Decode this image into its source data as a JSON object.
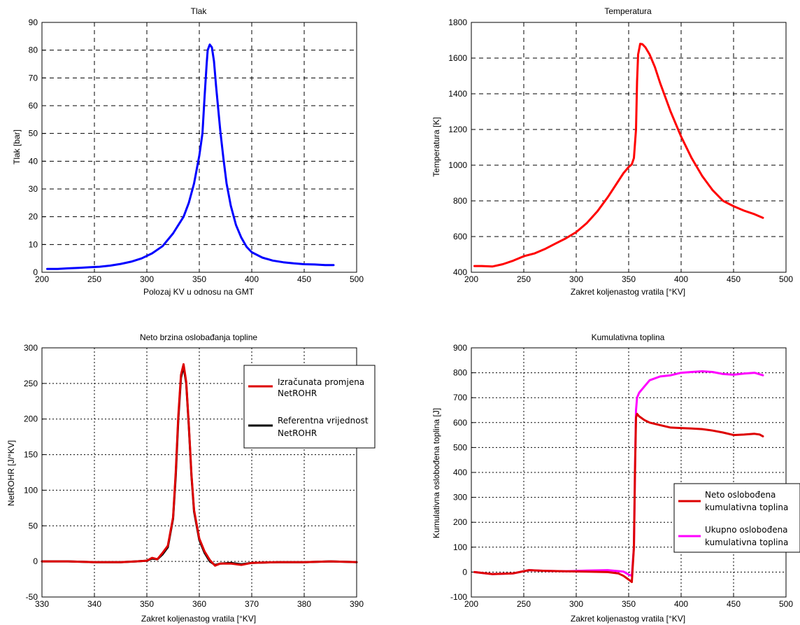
{
  "chart_data": [
    {
      "type": "line",
      "title": "Tlak",
      "xlabel": "Polozaj KV u odnosu na GMT",
      "ylabel": "Tlak [bar]",
      "xlim": [
        200,
        500
      ],
      "ylim": [
        0,
        90
      ],
      "xticks": [
        200,
        250,
        300,
        350,
        400,
        450,
        500
      ],
      "yticks": [
        0,
        10,
        20,
        30,
        40,
        50,
        60,
        70,
        80,
        90
      ],
      "grid": "dashed",
      "series": [
        {
          "color": "#0000ff",
          "x": [
            205,
            215,
            225,
            235,
            245,
            255,
            265,
            275,
            285,
            295,
            305,
            315,
            325,
            335,
            340,
            345,
            350,
            353,
            355,
            357,
            358,
            360,
            362,
            364,
            366,
            368,
            370,
            373,
            376,
            380,
            385,
            390,
            395,
            400,
            410,
            420,
            430,
            440,
            450,
            460,
            470,
            478
          ],
          "y": [
            1.2,
            1.2,
            1.4,
            1.6,
            1.8,
            2.0,
            2.4,
            3.0,
            3.8,
            5.0,
            6.8,
            9.4,
            14,
            20,
            25,
            32,
            42,
            50,
            63,
            75,
            80,
            82,
            81,
            76,
            67,
            59,
            51,
            41,
            32,
            24,
            17,
            12.5,
            9.2,
            7.2,
            5.3,
            4.2,
            3.6,
            3.2,
            2.9,
            2.8,
            2.6,
            2.6
          ]
        }
      ]
    },
    {
      "type": "line",
      "title": "Temperatura",
      "xlabel": "Zakret koljenastog vratila [°KV]",
      "ylabel": "Temperatura [K]",
      "xlim": [
        200,
        500
      ],
      "ylim": [
        400,
        1800
      ],
      "xticks": [
        200,
        250,
        300,
        350,
        400,
        450,
        500
      ],
      "yticks": [
        400,
        600,
        800,
        1000,
        1200,
        1400,
        1600,
        1800
      ],
      "grid": "dashed",
      "series": [
        {
          "color": "#ff0000",
          "x": [
            203,
            210,
            220,
            230,
            240,
            250,
            260,
            270,
            280,
            290,
            300,
            310,
            320,
            330,
            340,
            345,
            350,
            353,
            355,
            357,
            358,
            359,
            361,
            363,
            366,
            370,
            375,
            380,
            390,
            400,
            410,
            420,
            430,
            440,
            450,
            460,
            470,
            478
          ],
          "y": [
            435,
            435,
            432,
            445,
            465,
            490,
            505,
            530,
            560,
            590,
            625,
            675,
            740,
            820,
            910,
            955,
            990,
            1005,
            1040,
            1200,
            1470,
            1620,
            1680,
            1678,
            1660,
            1620,
            1550,
            1460,
            1300,
            1160,
            1040,
            940,
            860,
            800,
            770,
            745,
            725,
            705
          ]
        }
      ]
    },
    {
      "type": "line",
      "title": "Neto brzina oslobađanja topline",
      "xlabel": "Zakret koljenastog vratila [°KV]",
      "ylabel": "NetROHR [J/°KV]",
      "xlim": [
        330,
        390
      ],
      "ylim": [
        -50,
        300
      ],
      "xticks": [
        330,
        340,
        350,
        360,
        370,
        380,
        390
      ],
      "yticks": [
        -50,
        0,
        50,
        100,
        150,
        200,
        250,
        300
      ],
      "grid": "dotted",
      "legend": "top-right",
      "series": [
        {
          "name": "Referentna vrijednost NetROHR",
          "color": "#000000",
          "x": [
            330,
            335,
            340,
            345,
            348,
            350,
            351,
            352,
            353,
            354,
            355,
            355.5,
            356,
            356.5,
            357,
            357.5,
            358,
            358.5,
            359,
            360,
            361,
            362,
            363,
            364,
            366,
            368,
            370,
            375,
            380,
            385,
            390
          ],
          "y": [
            0,
            0,
            -1,
            -1,
            0,
            1,
            4,
            3,
            10,
            20,
            60,
            120,
            200,
            258,
            274,
            250,
            190,
            120,
            70,
            30,
            12,
            0,
            -5,
            -3,
            -2,
            -4,
            -2,
            -1,
            -1,
            0,
            -1
          ]
        },
        {
          "name": "Izračunata promjena NetROHR",
          "color": "#dd0000",
          "x": [
            330,
            335,
            340,
            345,
            348,
            350,
            351,
            352,
            353,
            354,
            355,
            355.5,
            356,
            356.5,
            357,
            357.5,
            358,
            358.5,
            359,
            360,
            361,
            362,
            363,
            364,
            366,
            368,
            370,
            375,
            380,
            385,
            390
          ],
          "y": [
            0,
            0,
            -1,
            -1,
            0,
            1,
            5,
            3,
            12,
            22,
            62,
            125,
            205,
            262,
            277,
            252,
            192,
            122,
            72,
            32,
            14,
            2,
            -6,
            -3,
            -3,
            -5,
            -2,
            -1,
            -1,
            0,
            -1
          ]
        }
      ],
      "legend_entries": [
        "Izračunata promjena",
        "NetROHR",
        "Referentna vrijednost",
        "NetROHR"
      ]
    },
    {
      "type": "line",
      "title": "Kumulativna toplina",
      "xlabel": "Zakret koljenastog vratila [°KV]",
      "ylabel": "Kumulativna oslobođena toplina [J]",
      "xlim": [
        200,
        500
      ],
      "ylim": [
        -100,
        900
      ],
      "xticks": [
        200,
        250,
        300,
        350,
        400,
        450,
        500
      ],
      "yticks": [
        -100,
        0,
        100,
        200,
        300,
        400,
        500,
        600,
        700,
        800,
        900
      ],
      "grid": "dotted",
      "legend": "bottom-right",
      "series": [
        {
          "name": "Ukupno oslobođena kumulativna toplina",
          "color": "#ff00ff",
          "x": [
            203,
            220,
            240,
            255,
            270,
            290,
            310,
            330,
            345,
            350,
            353,
            355,
            356,
            357,
            358,
            360,
            365,
            370,
            380,
            390,
            400,
            410,
            420,
            430,
            440,
            450,
            460,
            470,
            478
          ],
          "y": [
            0,
            -8,
            -5,
            8,
            5,
            3,
            6,
            8,
            2,
            -10,
            -15,
            100,
            400,
            650,
            700,
            720,
            745,
            770,
            785,
            790,
            800,
            803,
            806,
            803,
            795,
            792,
            797,
            800,
            790
          ]
        },
        {
          "name": "Neto oslobođena kumulativna toplina",
          "color": "#dd0000",
          "x": [
            203,
            220,
            240,
            255,
            270,
            290,
            310,
            330,
            340,
            345,
            350,
            353,
            355,
            356,
            357,
            358,
            360,
            365,
            370,
            380,
            390,
            400,
            410,
            420,
            430,
            440,
            450,
            460,
            470,
            475,
            478
          ],
          "y": [
            0,
            -8,
            -5,
            8,
            5,
            3,
            2,
            0,
            -5,
            -15,
            -30,
            -40,
            100,
            400,
            620,
            635,
            625,
            610,
            600,
            590,
            580,
            578,
            576,
            574,
            568,
            560,
            550,
            552,
            555,
            552,
            545
          ]
        }
      ],
      "legend_entries": [
        "Neto oslobođena",
        "kumulativna toplina",
        "Ukupno oslobođena",
        "kumulativna toplina"
      ]
    }
  ]
}
